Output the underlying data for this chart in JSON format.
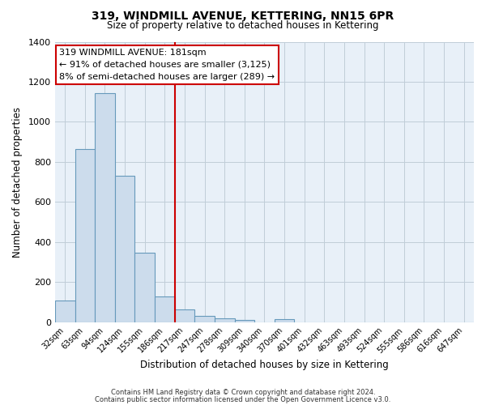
{
  "title": "319, WINDMILL AVENUE, KETTERING, NN15 6PR",
  "subtitle": "Size of property relative to detached houses in Kettering",
  "xlabel": "Distribution of detached houses by size in Kettering",
  "ylabel": "Number of detached properties",
  "bar_labels": [
    "32sqm",
    "63sqm",
    "94sqm",
    "124sqm",
    "155sqm",
    "186sqm",
    "217sqm",
    "247sqm",
    "278sqm",
    "309sqm",
    "340sqm",
    "370sqm",
    "401sqm",
    "432sqm",
    "463sqm",
    "493sqm",
    "524sqm",
    "555sqm",
    "586sqm",
    "616sqm",
    "647sqm"
  ],
  "bar_values": [
    107,
    865,
    1145,
    730,
    347,
    130,
    62,
    32,
    19,
    12,
    0,
    15,
    0,
    0,
    0,
    0,
    0,
    0,
    0,
    0,
    0
  ],
  "bar_color": "#ccdcec",
  "bar_edge_color": "#6699bb",
  "vline_x": 5.5,
  "vline_color": "#cc0000",
  "ylim": [
    0,
    1400
  ],
  "yticks": [
    0,
    200,
    400,
    600,
    800,
    1000,
    1200,
    1400
  ],
  "annotation_title": "319 WINDMILL AVENUE: 181sqm",
  "annotation_line1": "← 91% of detached houses are smaller (3,125)",
  "annotation_line2": "8% of semi-detached houses are larger (289) →",
  "annotation_box_color": "#ffffff",
  "annotation_box_edge": "#cc0000",
  "footnote1": "Contains HM Land Registry data © Crown copyright and database right 2024.",
  "footnote2": "Contains public sector information licensed under the Open Government Licence v3.0.",
  "background_color": "#ffffff",
  "grid_color": "#c0cdd8",
  "plot_bg_color": "#e8f0f8"
}
